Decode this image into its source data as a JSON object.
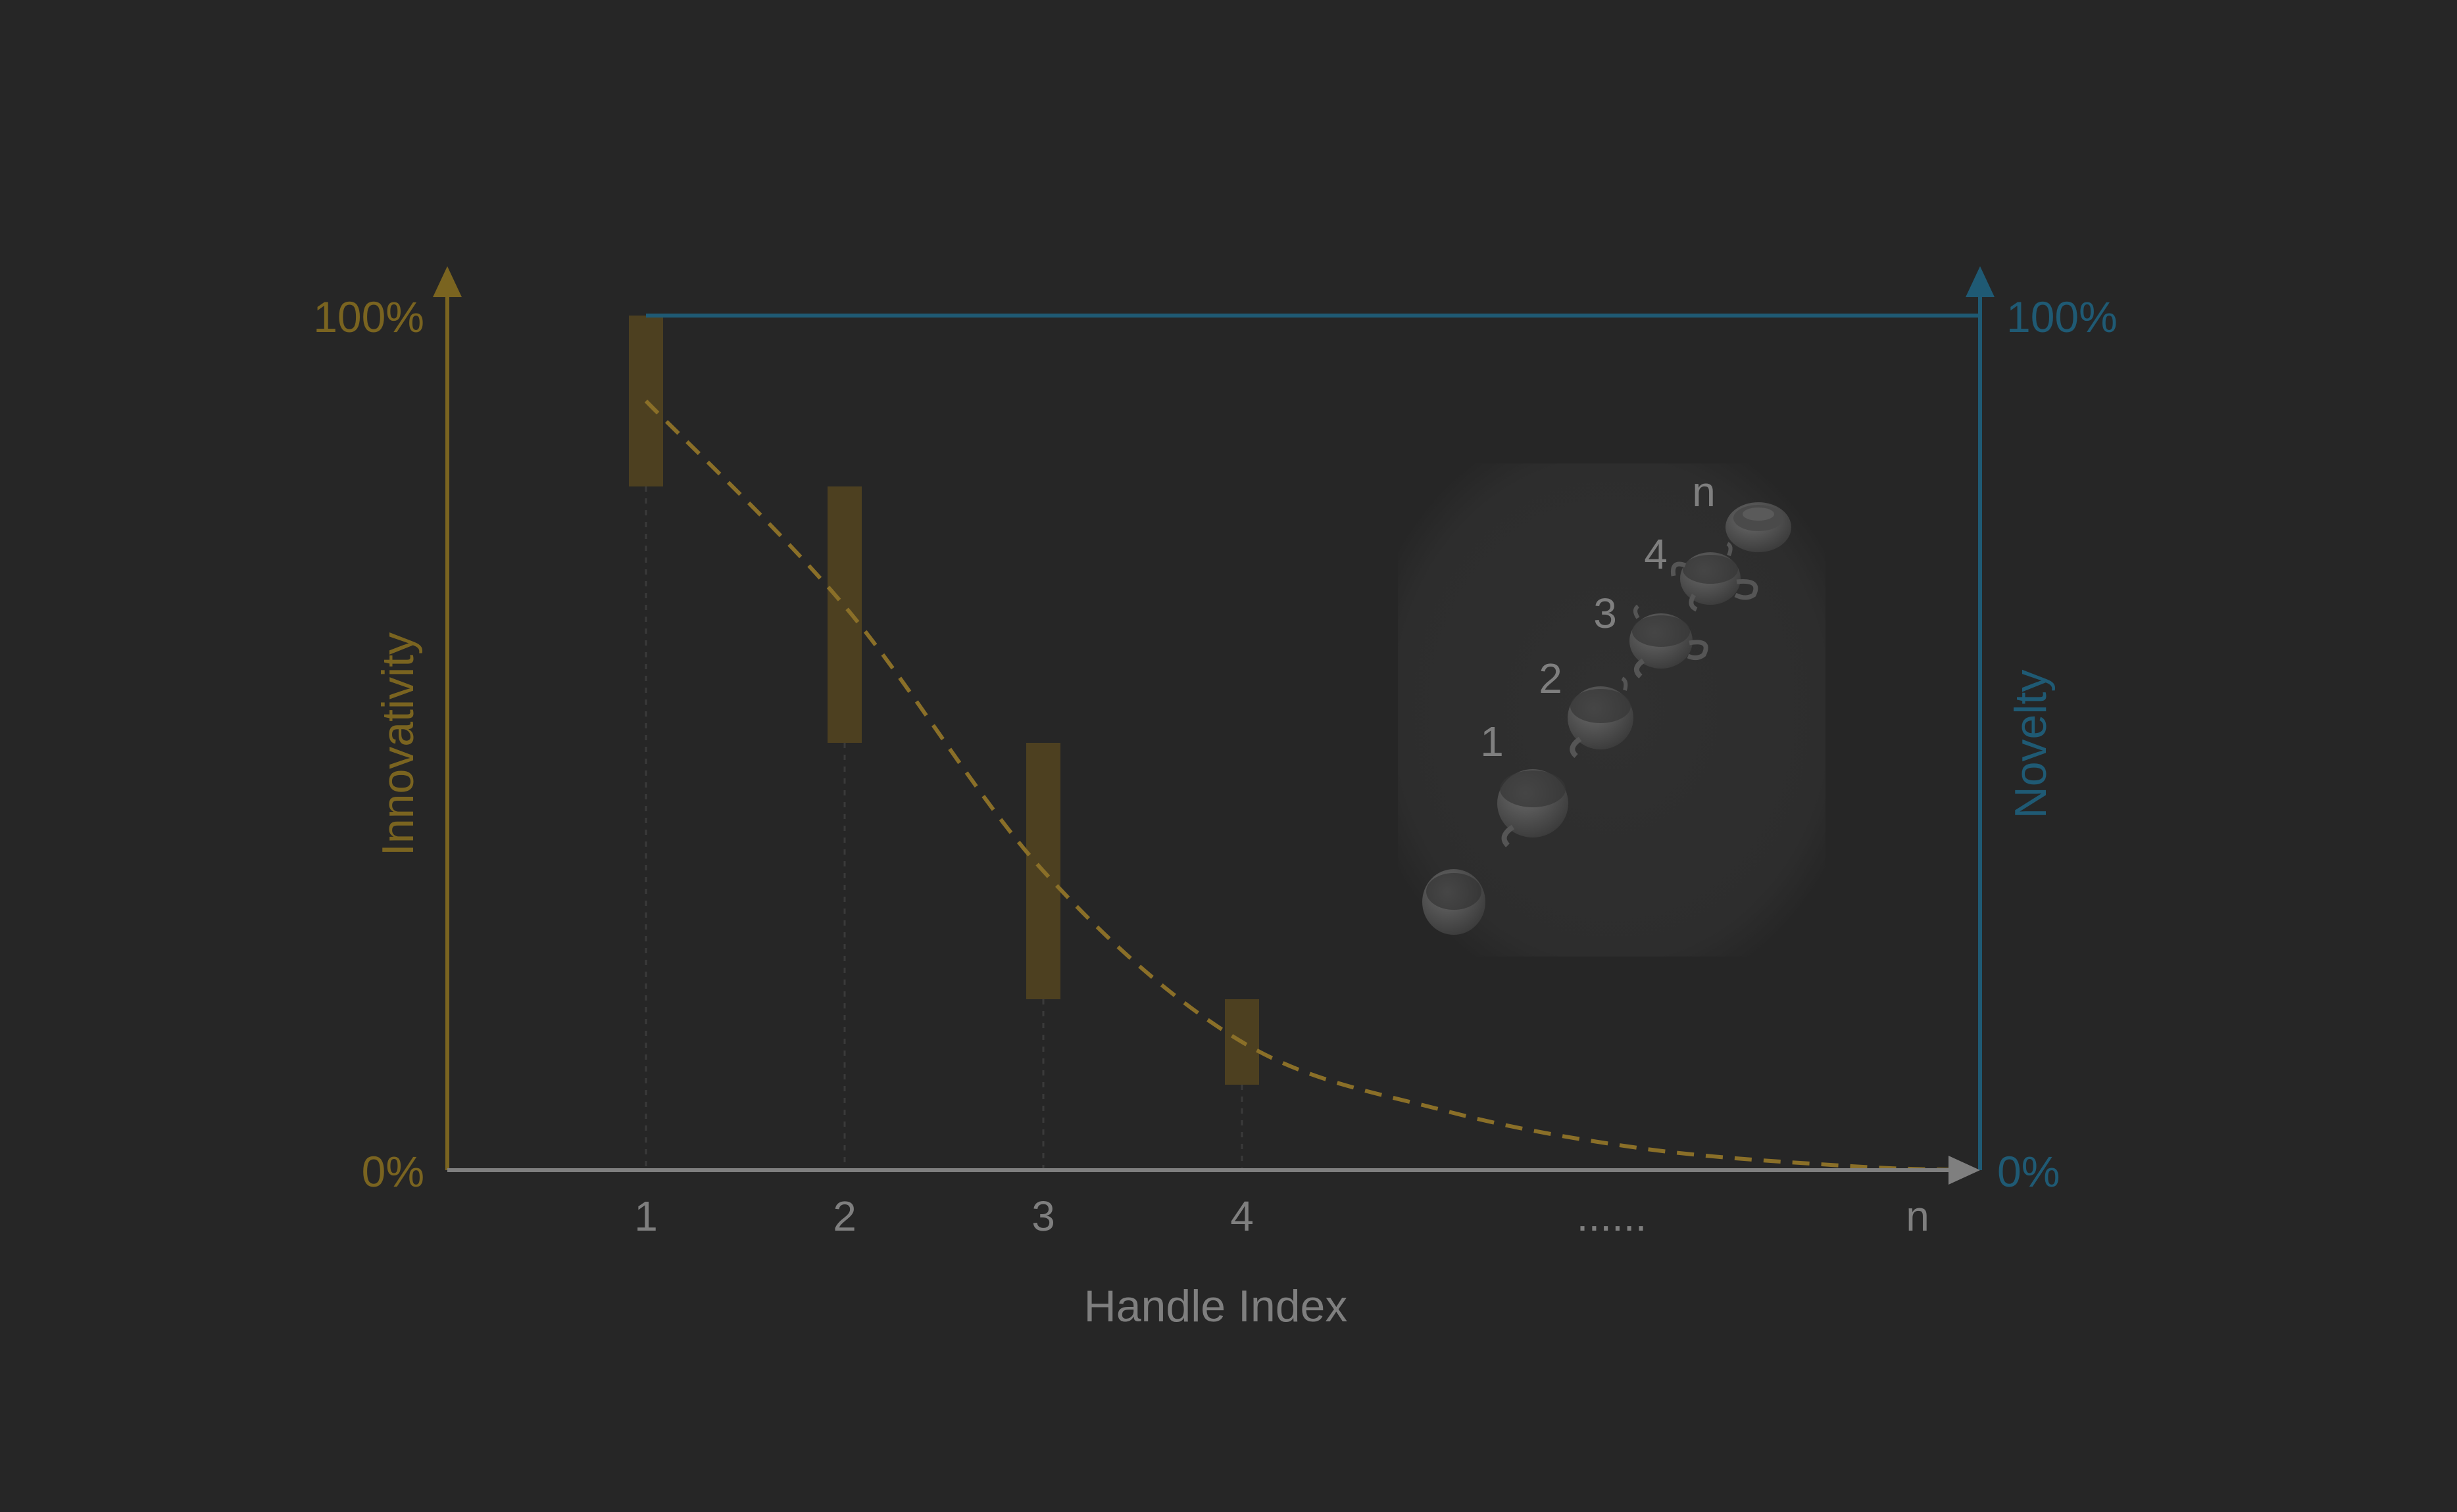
{
  "chart_data": {
    "type": "bar",
    "categories": [
      "1",
      "2",
      "3",
      "4",
      "......",
      "n"
    ],
    "xlabel": "Handle Index",
    "ylabel_left": "Innovativity",
    "ylabel_right": "Novelty",
    "y_left_ticks": [
      "0%",
      "100%"
    ],
    "y_right_ticks": [
      "0%",
      "100%"
    ],
    "ylim": [
      0,
      100
    ],
    "bars": [
      {
        "x": "1",
        "low": 80,
        "high": 100
      },
      {
        "x": "2",
        "low": 50,
        "high": 80
      },
      {
        "x": "3",
        "low": 20,
        "high": 50
      },
      {
        "x": "4",
        "low": 10,
        "high": 20
      }
    ],
    "innovativity_curve": {
      "style": "dashed",
      "x": [
        1,
        2,
        3,
        4,
        5,
        6,
        7,
        7.6
      ],
      "y": [
        90,
        66,
        35,
        15,
        7,
        2.5,
        0.5,
        0
      ]
    },
    "novelty_line": {
      "x_start": 1,
      "x_end": 7.6,
      "y": 100
    },
    "inset_labels": [
      "1",
      "2",
      "3",
      "4",
      "n"
    ],
    "colors": {
      "background": "#262626",
      "innovativity": "#7a6420",
      "bar_fill": "#4d4020",
      "curve": "#8a6f28",
      "novelty": "#1f5a74",
      "x_axis": "#7f7f7f",
      "tick_text": "#7f7f7f"
    }
  }
}
